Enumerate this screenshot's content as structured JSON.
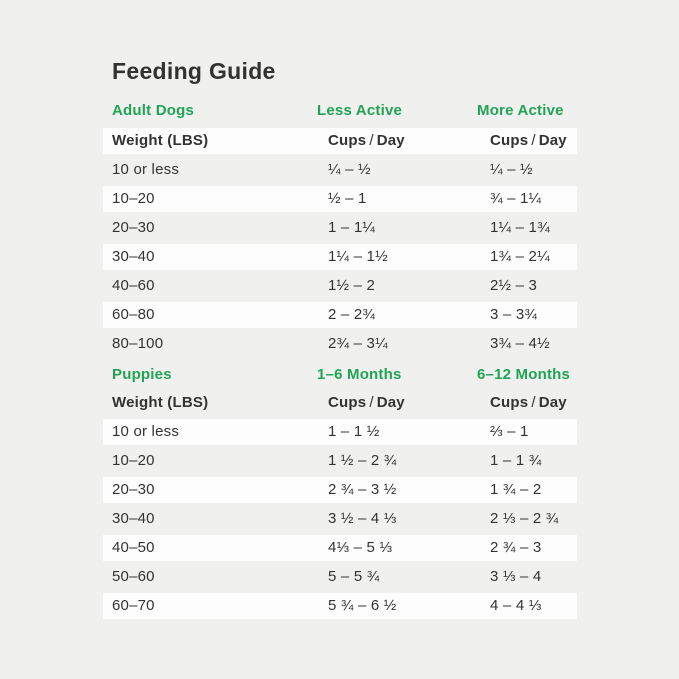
{
  "page": {
    "title": "Feeding Guide",
    "background_color": "#f0f0ee",
    "row_highlight_color": "#fdfdfd",
    "accent_green": "#21a356",
    "text_color": "#333333"
  },
  "adult_section": {
    "section_label": "Adult Dogs",
    "col2_label": "Less Active",
    "col3_label": "More Active",
    "columns": {
      "weight": "Weight (LBS)",
      "cups": "Cups",
      "slash": "/",
      "day": "Day"
    },
    "rows": [
      {
        "weight": "10 or less",
        "less_active": "¼ – ½",
        "more_active": "¼ – ½"
      },
      {
        "weight": "10–20",
        "less_active": "½ – 1",
        "more_active": "¾ – 1¼"
      },
      {
        "weight": "20–30",
        "less_active": "1 – 1¼",
        "more_active": "1¼ – 1¾"
      },
      {
        "weight": "30–40",
        "less_active": "1¼ – 1½",
        "more_active": "1¾ – 2¼"
      },
      {
        "weight": "40–60",
        "less_active": "1½ – 2",
        "more_active": "2½ – 3"
      },
      {
        "weight": "60–80",
        "less_active": "2 – 2¾",
        "more_active": "3 – 3¾"
      },
      {
        "weight": "80–100",
        "less_active": "2¾ – 3¼",
        "more_active": "3¾ – 4½"
      }
    ]
  },
  "puppies_section": {
    "section_label": "Puppies",
    "col2_label": "1–6 Months",
    "col3_label": "6–12 Months",
    "columns": {
      "weight": "Weight (LBS)",
      "cups": "Cups",
      "slash": "/",
      "day": "Day"
    },
    "rows": [
      {
        "weight": "10 or less",
        "months_1_6": "1 – 1 ½",
        "months_6_12": "⅔ – 1"
      },
      {
        "weight": "10–20",
        "months_1_6": "1 ½ – 2 ¾",
        "months_6_12": "1 – 1 ¾"
      },
      {
        "weight": "20–30",
        "months_1_6": "2 ¾ – 3 ½",
        "months_6_12": "1 ¾ – 2"
      },
      {
        "weight": "30–40",
        "months_1_6": "3 ½ – 4 ⅓",
        "months_6_12": "2 ⅓ – 2 ¾"
      },
      {
        "weight": "40–50",
        "months_1_6": "4⅓ – 5 ⅓",
        "months_6_12": "2 ¾ – 3"
      },
      {
        "weight": "50–60",
        "months_1_6": "5 – 5 ¾",
        "months_6_12": "3 ⅓ – 4"
      },
      {
        "weight": "60–70",
        "months_1_6": "5 ¾ – 6 ½",
        "months_6_12": "4 – 4 ⅓"
      }
    ]
  }
}
